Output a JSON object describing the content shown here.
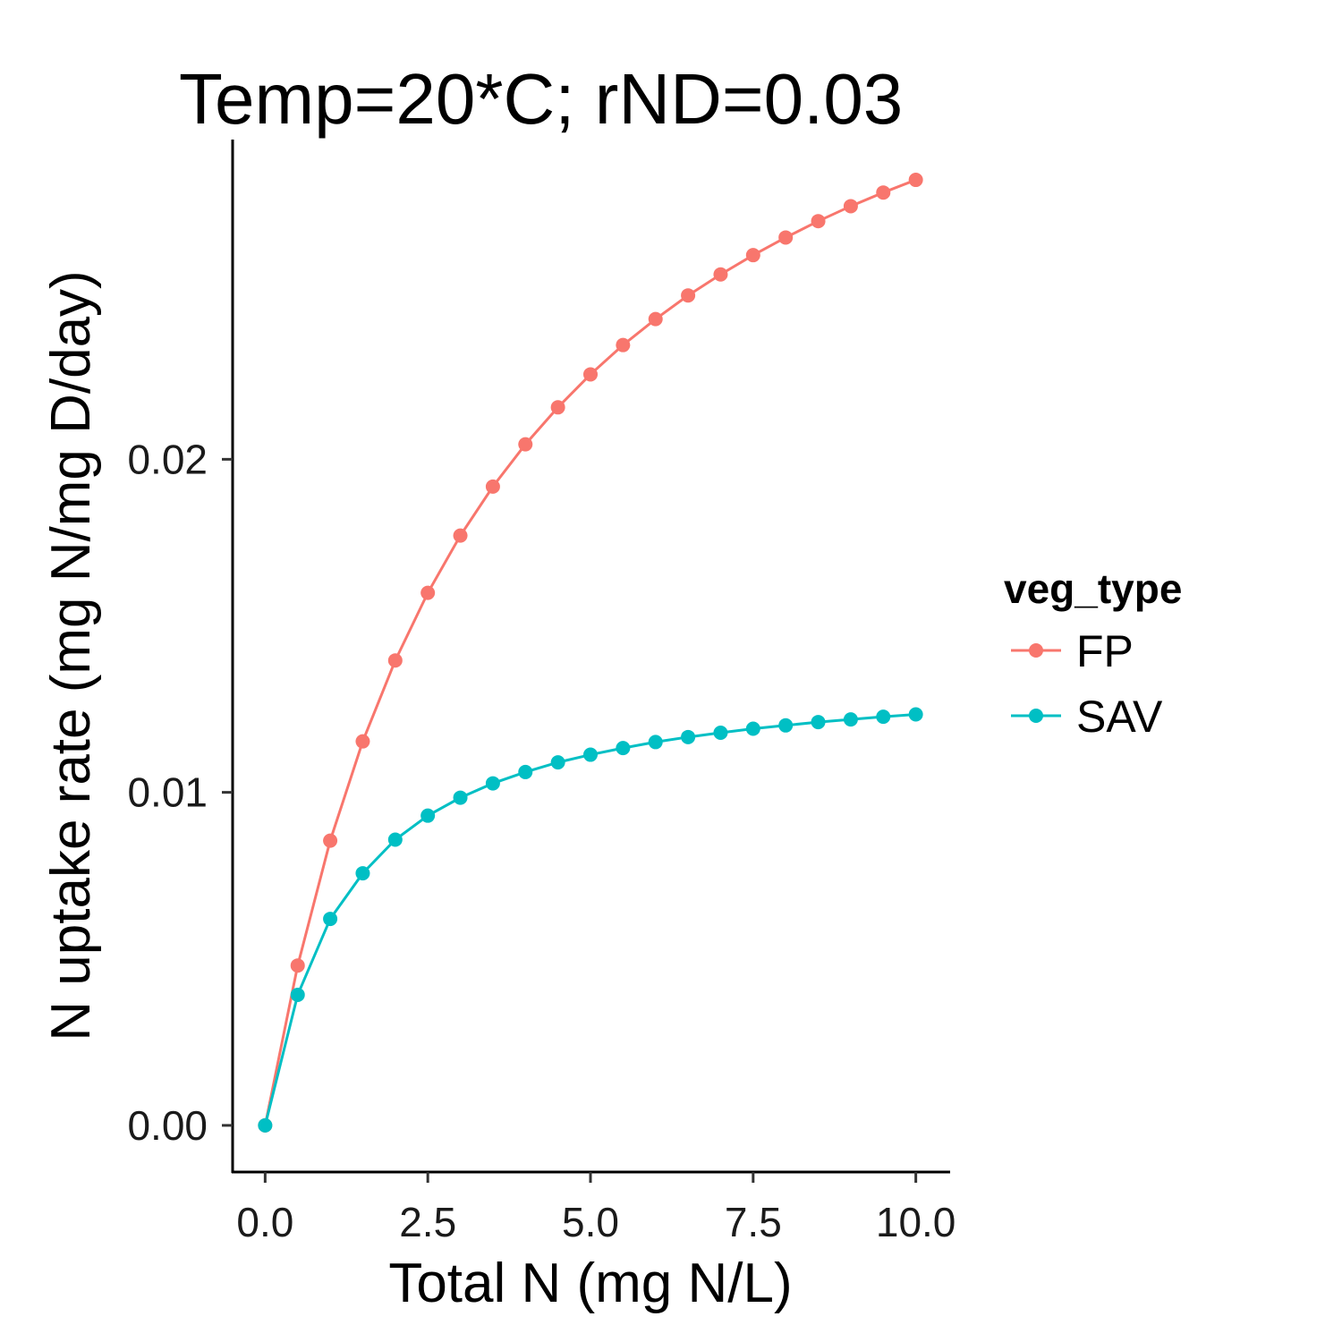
{
  "chart_data": {
    "type": "line",
    "title": "Temp=20*C; rND=0.03",
    "xlabel": "Total N (mg N/L)",
    "ylabel": "N uptake rate (mg N/mg D/day)",
    "xlim": [
      -0.5,
      10.5
    ],
    "ylim": [
      -0.0014,
      0.0296
    ],
    "x_ticks": [
      0.0,
      2.5,
      5.0,
      7.5,
      10.0
    ],
    "x_tick_labels": [
      "0.0",
      "2.5",
      "5.0",
      "7.5",
      "10.0"
    ],
    "y_ticks": [
      0.0,
      0.01,
      0.02
    ],
    "y_tick_labels": [
      "0.00",
      "0.01",
      "0.02"
    ],
    "grid": false,
    "legend": {
      "title": "veg_type",
      "position": "right"
    },
    "x": [
      0,
      0.5,
      1,
      1.5,
      2,
      2.5,
      3,
      3.5,
      4,
      4.5,
      5,
      5.5,
      6,
      6.5,
      7,
      7.5,
      8,
      8.5,
      9,
      9.5,
      10
    ],
    "series": [
      {
        "name": "FP",
        "color": "#F8766D",
        "values": [
          0.0,
          0.0048,
          0.00855,
          0.01153,
          0.01396,
          0.01599,
          0.01771,
          0.01918,
          0.02045,
          0.02156,
          0.02255,
          0.02343,
          0.02421,
          0.02492,
          0.02555,
          0.02613,
          0.02666,
          0.02715,
          0.0276,
          0.02801,
          0.02839
        ]
      },
      {
        "name": "SAV",
        "color": "#00BFC4",
        "values": [
          0.0,
          0.00392,
          0.0062,
          0.00757,
          0.00858,
          0.0093,
          0.00984,
          0.01027,
          0.01061,
          0.0109,
          0.01113,
          0.01133,
          0.01151,
          0.01166,
          0.01179,
          0.01191,
          0.01201,
          0.01211,
          0.01219,
          0.01227,
          0.01234
        ]
      }
    ]
  }
}
